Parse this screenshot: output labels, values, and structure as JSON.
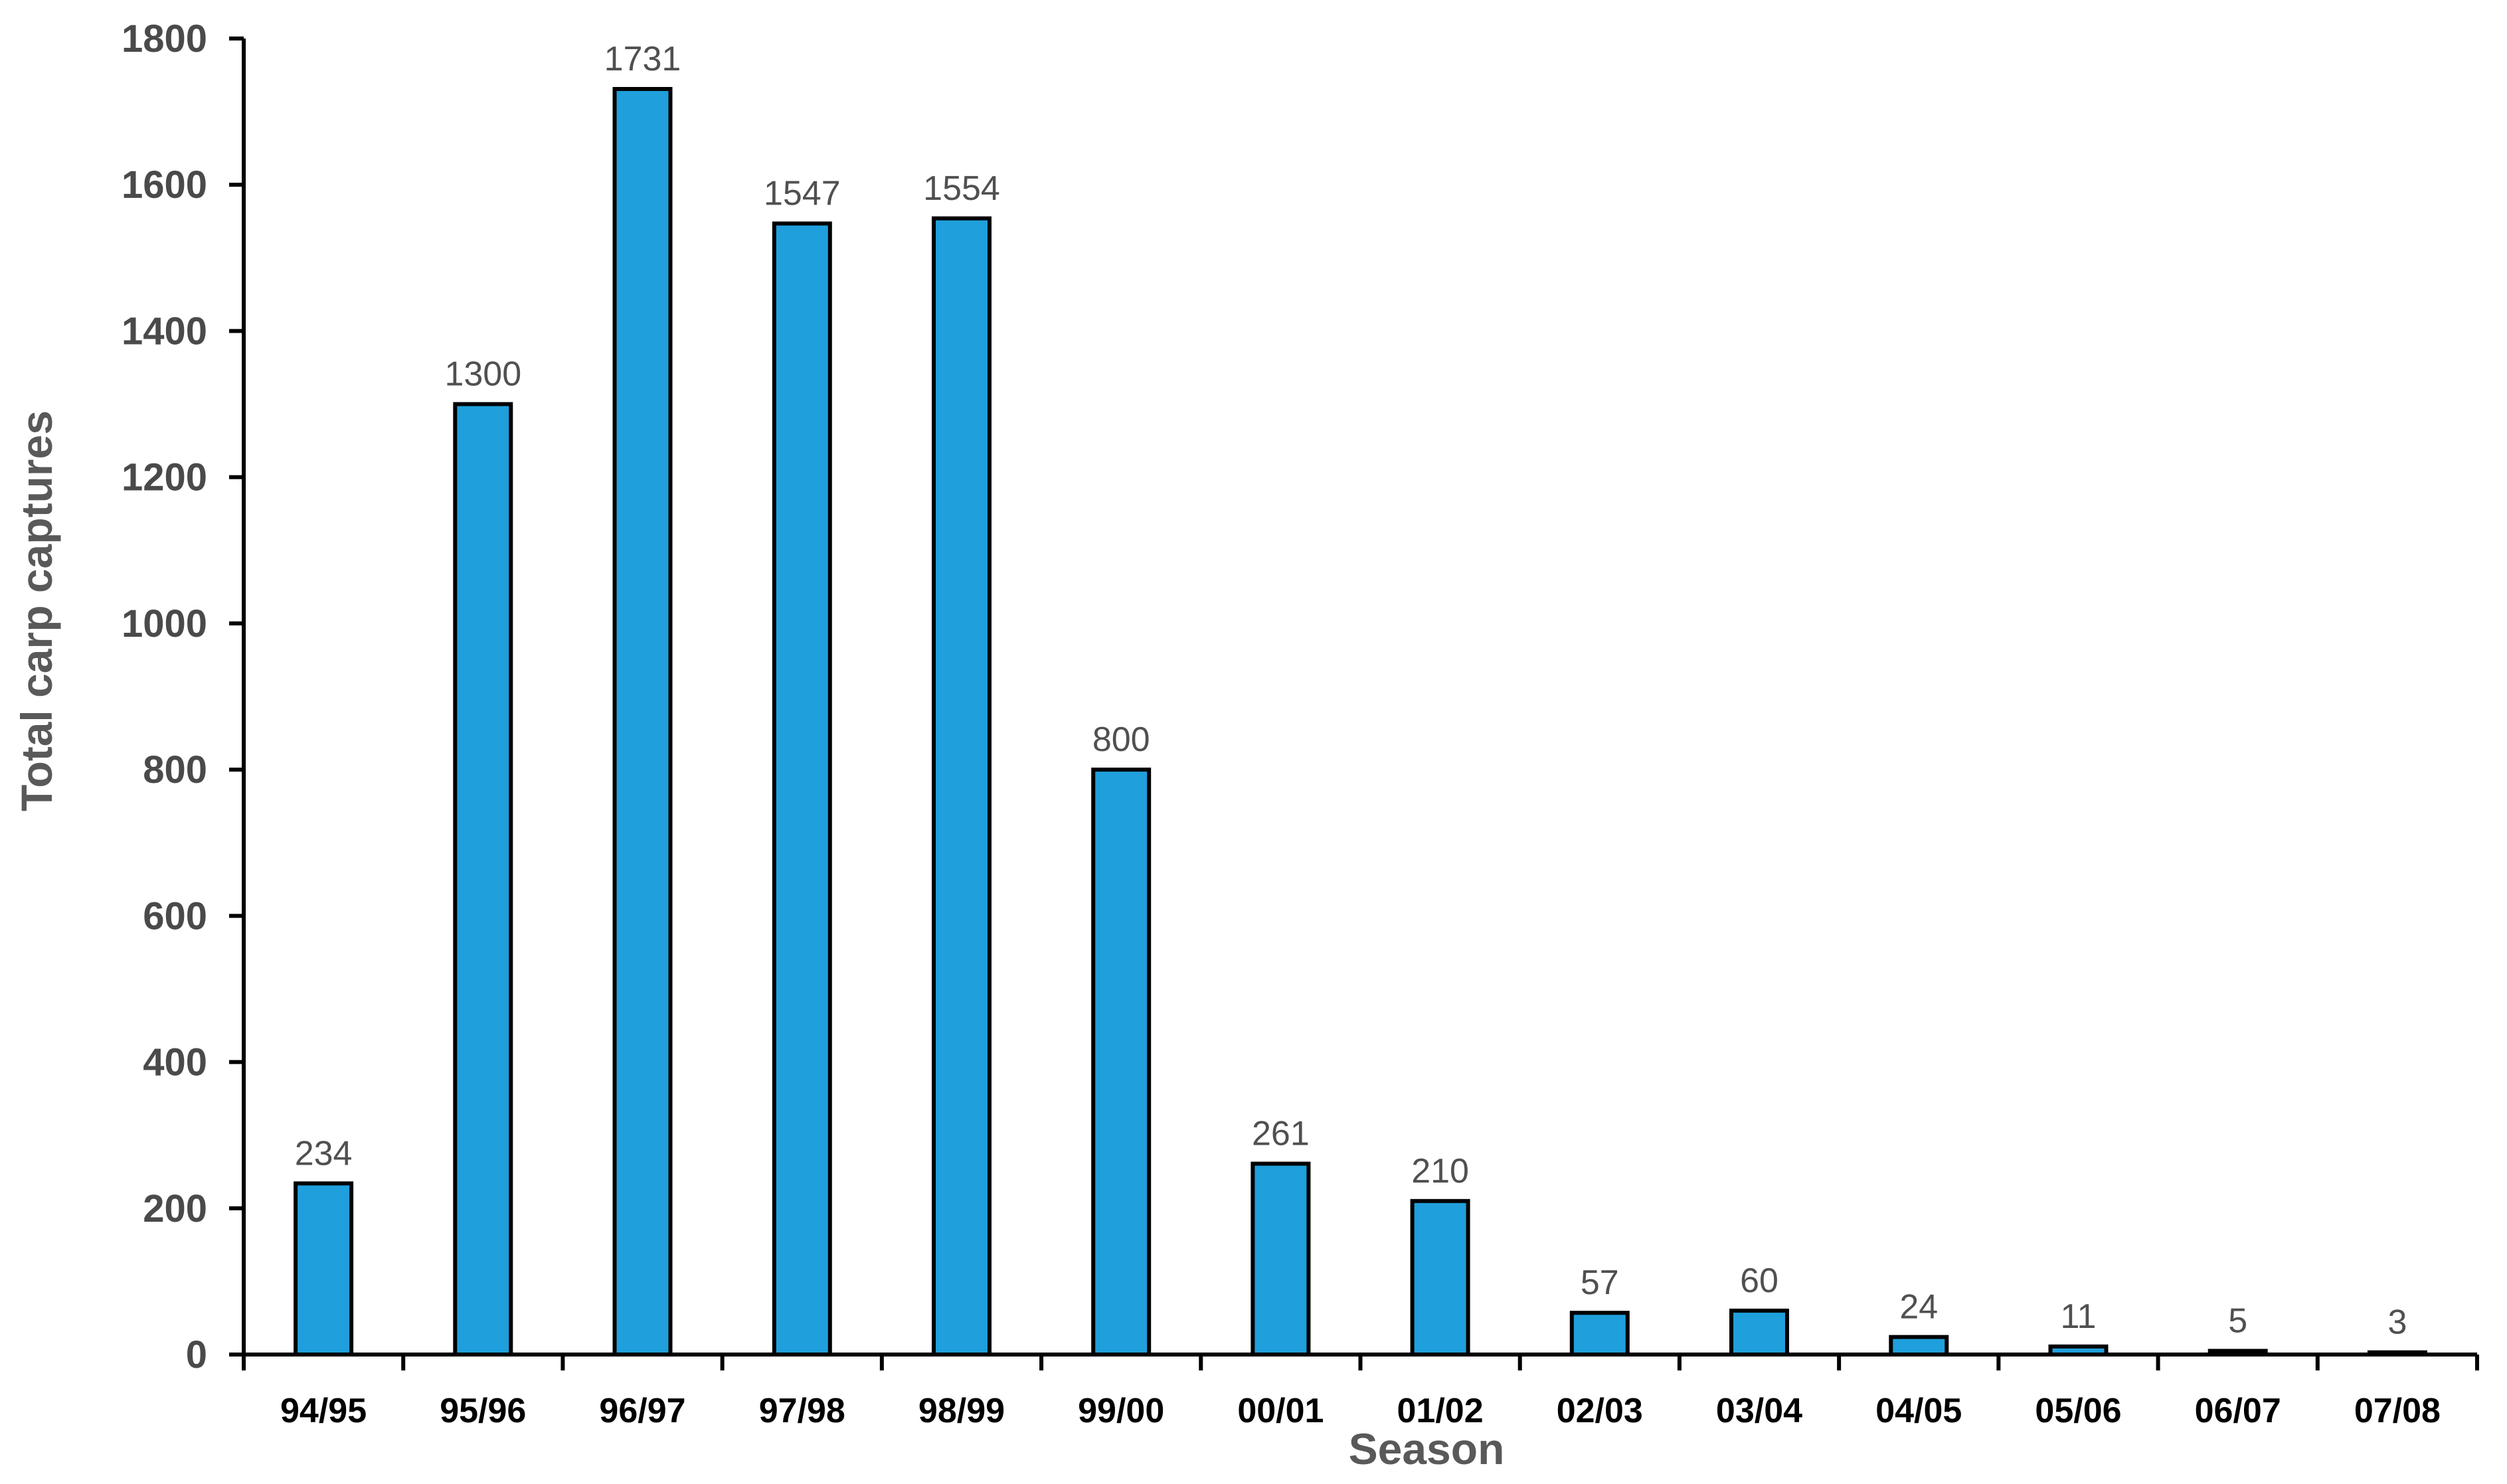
{
  "chart_data": {
    "type": "bar",
    "title": "",
    "xlabel": "Season",
    "ylabel": "Total carp captures",
    "categories": [
      "94/95",
      "95/96",
      "96/97",
      "97/98",
      "98/99",
      "99/00",
      "00/01",
      "01/02",
      "02/03",
      "03/04",
      "04/05",
      "05/06",
      "06/07",
      "07/08"
    ],
    "values": [
      234,
      1300,
      1731,
      1547,
      1554,
      800,
      261,
      210,
      57,
      60,
      24,
      11,
      5,
      3
    ],
    "data_labels": [
      "234",
      "1300",
      "1731",
      "1547",
      "1554",
      "800",
      "261",
      "210",
      "57",
      "60",
      "24",
      "11",
      "5",
      "3"
    ],
    "ylim": [
      0,
      1800
    ],
    "yticks": [
      0,
      200,
      400,
      600,
      800,
      1000,
      1200,
      1400,
      1600,
      1800
    ],
    "ytick_labels": [
      "0",
      "200",
      "400",
      "600",
      "800",
      "1000",
      "1200",
      "1400",
      "1600",
      "1800"
    ],
    "grid": false,
    "legend": "none",
    "colors": {
      "bar_fill": "#1f9fdb",
      "bar_stroke": "#000000",
      "axis": "#000000",
      "tick_label": "#4a4a4a",
      "category_label": "#000000",
      "data_label": "#505050",
      "axis_title": "#595959"
    }
  }
}
